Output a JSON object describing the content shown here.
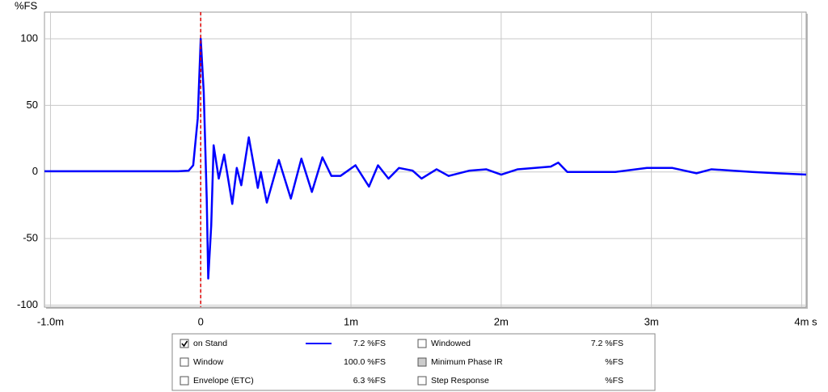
{
  "chart_data": {
    "type": "line",
    "y_label": "%FS",
    "x_unit": "s",
    "xlim": [
      -1.04,
      4.03
    ],
    "ylim": [
      -101.5,
      120
    ],
    "xticks": [
      {
        "value": -1.0,
        "label": "-1.0m"
      },
      0,
      {
        "value": 1,
        "label": "1m"
      },
      {
        "value": 2,
        "label": "2m"
      },
      {
        "value": 3,
        "label": "3m"
      },
      {
        "value": 4,
        "label": "4m"
      }
    ],
    "yticks": [
      100,
      50,
      0,
      -50,
      -100
    ],
    "grid": true,
    "cursor_x": 0,
    "cursor_color": "#e00000",
    "series": [
      {
        "name": "on Stand",
        "color": "#0000ff",
        "readout": "7.2 %FS",
        "checked": true,
        "x": [
          -1.04,
          -0.15,
          -0.08,
          -0.05,
          -0.02,
          0.0,
          0.02,
          0.04,
          0.05,
          0.07,
          0.086,
          0.12,
          0.156,
          0.21,
          0.24,
          0.27,
          0.32,
          0.38,
          0.4,
          0.44,
          0.52,
          0.6,
          0.67,
          0.74,
          0.81,
          0.87,
          0.93,
          1.03,
          1.12,
          1.18,
          1.25,
          1.32,
          1.41,
          1.47,
          1.57,
          1.65,
          1.79,
          1.9,
          2.0,
          2.11,
          2.33,
          2.38,
          2.44,
          2.6,
          2.76,
          2.97,
          3.14,
          3.3,
          3.4,
          3.67,
          3.84,
          4.03
        ],
        "values": [
          0.5,
          0.5,
          1,
          5,
          40,
          100,
          60,
          -20,
          -80,
          -40,
          20,
          -5,
          13,
          -24,
          3,
          -10,
          26,
          -12,
          0,
          -23,
          9,
          -20,
          10,
          -15,
          11,
          -3,
          -3,
          5,
          -11,
          5,
          -5,
          3,
          1,
          -5,
          2,
          -3,
          1,
          2,
          -2,
          2,
          4,
          7,
          0,
          0,
          0,
          3,
          3,
          -1,
          2,
          0,
          -1,
          -2
        ]
      }
    ],
    "legend_extra": [
      {
        "label": "Window",
        "readout": "100.0 %FS",
        "checked": false,
        "disabled": false
      },
      {
        "label": "Envelope (ETC)",
        "readout": "6.3 %FS",
        "checked": false,
        "disabled": false
      },
      {
        "label": "Windowed",
        "readout": "7.2 %FS",
        "checked": false,
        "disabled": false
      },
      {
        "label": "Minimum Phase IR",
        "readout": "%FS",
        "checked": false,
        "disabled": true
      },
      {
        "label": "Step Response",
        "readout": "%FS",
        "checked": false,
        "disabled": false
      }
    ]
  }
}
